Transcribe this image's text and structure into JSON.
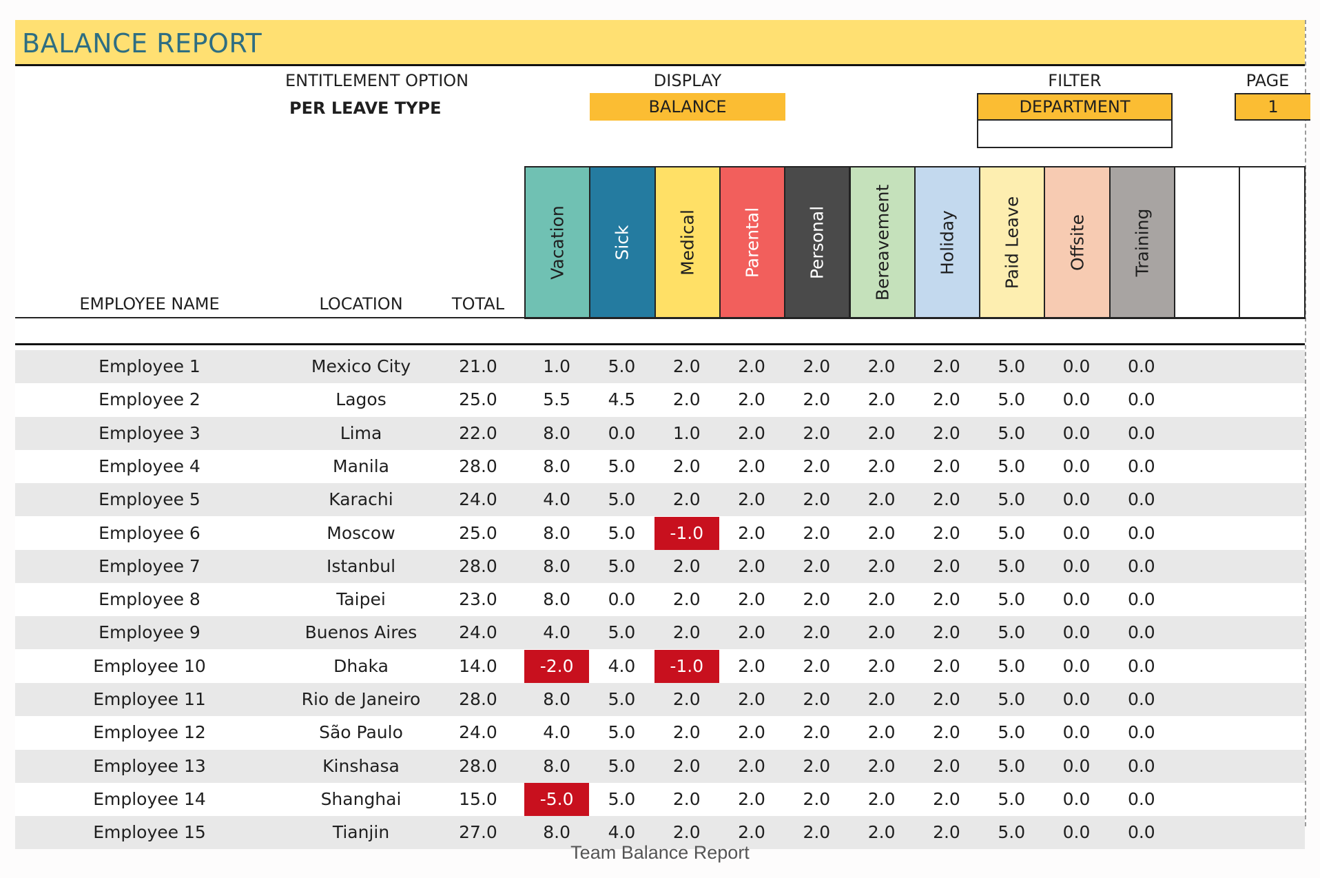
{
  "title": "BALANCE REPORT",
  "settings": {
    "entitlement_label": "ENTITLEMENT OPTION",
    "entitlement_value": "PER LEAVE TYPE",
    "display_label": "DISPLAY",
    "display_value": "BALANCE",
    "filter_label": "FILTER",
    "filter_value": "DEPARTMENT",
    "filter_input": "",
    "page_label": "PAGE",
    "page_value": "1"
  },
  "columns": {
    "name": "EMPLOYEE NAME",
    "location": "LOCATION",
    "total": "TOTAL"
  },
  "leave_types": [
    {
      "label": "Vacation",
      "color": "#70c1b3",
      "text": "#1f1f1f"
    },
    {
      "label": "Sick",
      "color": "#247ba0",
      "text": "#ffffff"
    },
    {
      "label": "Medical",
      "color": "#ffe066",
      "text": "#1f1f1f"
    },
    {
      "label": "Parental",
      "color": "#f25f5c",
      "text": "#ffffff"
    },
    {
      "label": "Personal",
      "color": "#4a4a4a",
      "text": "#ffffff"
    },
    {
      "label": "Bereavement",
      "color": "#c5e1bb",
      "text": "#1f1f1f"
    },
    {
      "label": "Holiday",
      "color": "#c3d9ee",
      "text": "#1f1f1f"
    },
    {
      "label": "Paid Leave",
      "color": "#fdeeb0",
      "text": "#1f1f1f"
    },
    {
      "label": "Offsite",
      "color": "#f7cbb2",
      "text": "#1f1f1f"
    },
    {
      "label": "Training",
      "color": "#a8a4a2",
      "text": "#1f1f1f"
    },
    {
      "label": "",
      "color": "#ffffff",
      "text": "#1f1f1f"
    },
    {
      "label": "",
      "color": "#ffffff",
      "text": "#1f1f1f"
    }
  ],
  "negative_color": "#c8101e",
  "rows": [
    {
      "name": "Employee 1",
      "location": "Mexico City",
      "total": "21.0",
      "values": [
        "1.0",
        "5.0",
        "2.0",
        "2.0",
        "2.0",
        "2.0",
        "2.0",
        "5.0",
        "0.0",
        "0.0"
      ]
    },
    {
      "name": "Employee 2",
      "location": "Lagos",
      "total": "25.0",
      "values": [
        "5.5",
        "4.5",
        "2.0",
        "2.0",
        "2.0",
        "2.0",
        "2.0",
        "5.0",
        "0.0",
        "0.0"
      ]
    },
    {
      "name": "Employee 3",
      "location": "Lima",
      "total": "22.0",
      "values": [
        "8.0",
        "0.0",
        "1.0",
        "2.0",
        "2.0",
        "2.0",
        "2.0",
        "5.0",
        "0.0",
        "0.0"
      ]
    },
    {
      "name": "Employee 4",
      "location": "Manila",
      "total": "28.0",
      "values": [
        "8.0",
        "5.0",
        "2.0",
        "2.0",
        "2.0",
        "2.0",
        "2.0",
        "5.0",
        "0.0",
        "0.0"
      ]
    },
    {
      "name": "Employee 5",
      "location": "Karachi",
      "total": "24.0",
      "values": [
        "4.0",
        "5.0",
        "2.0",
        "2.0",
        "2.0",
        "2.0",
        "2.0",
        "5.0",
        "0.0",
        "0.0"
      ]
    },
    {
      "name": "Employee 6",
      "location": "Moscow",
      "total": "25.0",
      "values": [
        "8.0",
        "5.0",
        "-1.0",
        "2.0",
        "2.0",
        "2.0",
        "2.0",
        "5.0",
        "0.0",
        "0.0"
      ]
    },
    {
      "name": "Employee 7",
      "location": "Istanbul",
      "total": "28.0",
      "values": [
        "8.0",
        "5.0",
        "2.0",
        "2.0",
        "2.0",
        "2.0",
        "2.0",
        "5.0",
        "0.0",
        "0.0"
      ]
    },
    {
      "name": "Employee 8",
      "location": "Taipei",
      "total": "23.0",
      "values": [
        "8.0",
        "0.0",
        "2.0",
        "2.0",
        "2.0",
        "2.0",
        "2.0",
        "5.0",
        "0.0",
        "0.0"
      ]
    },
    {
      "name": "Employee 9",
      "location": "Buenos Aires",
      "total": "24.0",
      "values": [
        "4.0",
        "5.0",
        "2.0",
        "2.0",
        "2.0",
        "2.0",
        "2.0",
        "5.0",
        "0.0",
        "0.0"
      ]
    },
    {
      "name": "Employee 10",
      "location": "Dhaka",
      "total": "14.0",
      "values": [
        "-2.0",
        "4.0",
        "-1.0",
        "2.0",
        "2.0",
        "2.0",
        "2.0",
        "5.0",
        "0.0",
        "0.0"
      ]
    },
    {
      "name": "Employee 11",
      "location": "Rio de Janeiro",
      "total": "28.0",
      "values": [
        "8.0",
        "5.0",
        "2.0",
        "2.0",
        "2.0",
        "2.0",
        "2.0",
        "5.0",
        "0.0",
        "0.0"
      ]
    },
    {
      "name": "Employee 12",
      "location": "São Paulo",
      "total": "24.0",
      "values": [
        "4.0",
        "5.0",
        "2.0",
        "2.0",
        "2.0",
        "2.0",
        "2.0",
        "5.0",
        "0.0",
        "0.0"
      ]
    },
    {
      "name": "Employee 13",
      "location": "Kinshasa",
      "total": "28.0",
      "values": [
        "8.0",
        "5.0",
        "2.0",
        "2.0",
        "2.0",
        "2.0",
        "2.0",
        "5.0",
        "0.0",
        "0.0"
      ]
    },
    {
      "name": "Employee 14",
      "location": "Shanghai",
      "total": "15.0",
      "values": [
        "-5.0",
        "5.0",
        "2.0",
        "2.0",
        "2.0",
        "2.0",
        "2.0",
        "5.0",
        "0.0",
        "0.0"
      ]
    },
    {
      "name": "Employee 15",
      "location": "Tianjin",
      "total": "27.0",
      "values": [
        "8.0",
        "4.0",
        "2.0",
        "2.0",
        "2.0",
        "2.0",
        "2.0",
        "5.0",
        "0.0",
        "0.0"
      ]
    }
  ],
  "caption": "Team Balance Report"
}
